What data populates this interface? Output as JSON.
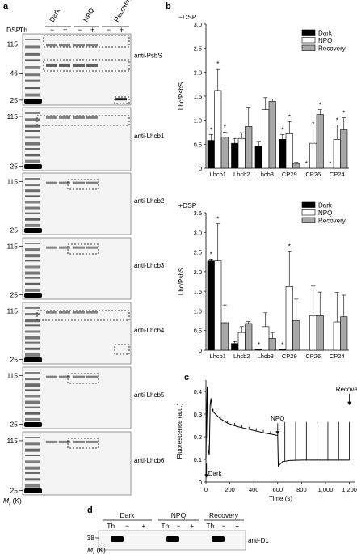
{
  "panel_letters": {
    "a": "a",
    "b": "b",
    "c": "c",
    "d": "d"
  },
  "blots": {
    "col_header": {
      "dsp": "DSP",
      "th": "Th",
      "minus": "−",
      "plus": "+"
    },
    "conditions": [
      "Dark",
      "NPQ",
      "Recovery"
    ],
    "mr_label": "M",
    "mr_sub": "r",
    "mr_unit": " (K)",
    "panels": [
      {
        "antibody": "anti-PsbS",
        "markers": [
          "115",
          "46",
          "25"
        ]
      },
      {
        "antibody": "anti-Lhcb1",
        "markers": [
          "115",
          "25"
        ]
      },
      {
        "antibody": "anti-Lhcb2",
        "markers": [
          "115",
          "25"
        ]
      },
      {
        "antibody": "anti-Lhcb3",
        "markers": [
          "115",
          "25"
        ]
      },
      {
        "antibody": "anti-Lhcb4",
        "markers": [
          "115",
          "25"
        ]
      },
      {
        "antibody": "anti-Lhcb5",
        "markers": [
          "115",
          "25"
        ]
      },
      {
        "antibody": "anti-Lhcb6",
        "markers": [
          "115",
          "25"
        ]
      }
    ]
  },
  "panel_d": {
    "conditions": [
      "Dark",
      "NPQ",
      "Recovery"
    ],
    "lanes": [
      "Th",
      "−",
      "+"
    ],
    "marker": "38",
    "antibody": "anti-D1"
  },
  "chart_data": [
    {
      "type": "bar",
      "title": "−DSP",
      "ylabel": "Lhc/PsbS",
      "ylim": [
        0,
        3.0
      ],
      "yticks": [
        "0",
        "0.5",
        "1.0",
        "1.5",
        "2.0",
        "2.5",
        "3.0"
      ],
      "categories": [
        "Lhcb1",
        "Lhcb2",
        "Lhcb3",
        "CP29",
        "CP26",
        "CP24"
      ],
      "series": [
        {
          "name": "Dark",
          "color": "#000000",
          "values": [
            0.58,
            0.52,
            0.46,
            0.6,
            0.0,
            0.0
          ],
          "errors": [
            0.12,
            0.1,
            0.1,
            0.1,
            0,
            0
          ]
        },
        {
          "name": "NPQ",
          "color": "#ffffff",
          "values": [
            1.62,
            0.62,
            1.22,
            0.72,
            0.52,
            0.6
          ],
          "errors": [
            0.45,
            0.12,
            0.25,
            0.25,
            0.3,
            0.3
          ]
        },
        {
          "name": "Recovery",
          "color": "#a8a8a8",
          "values": [
            0.65,
            0.87,
            1.39,
            0.1,
            1.12,
            0.8
          ],
          "errors": [
            0.1,
            0.4,
            0.05,
            0.03,
            0.1,
            0.25
          ]
        }
      ],
      "annotations": [
        {
          "category": "Lhcb1",
          "text": "*"
        },
        {
          "category": "Lhcb1",
          "text": "*"
        },
        {
          "category": "Lhcb1",
          "text": "*"
        },
        {
          "category": "CP29",
          "text": "*"
        },
        {
          "category": "CP29",
          "text": "*"
        },
        {
          "category": "CP26",
          "text": "*"
        },
        {
          "category": "CP26",
          "text": "*"
        },
        {
          "category": "CP26",
          "text": "*"
        },
        {
          "category": "CP24",
          "text": "*"
        },
        {
          "category": "CP24",
          "text": "*"
        },
        {
          "category": "CP24",
          "text": "*"
        }
      ],
      "legend": "top-right"
    },
    {
      "type": "bar",
      "title": "+DSP",
      "ylabel": "Lhc/PsbS",
      "ylim": [
        0,
        3.5
      ],
      "yticks": [
        "0",
        "0.5",
        "1.0",
        "1.5",
        "2.0",
        "2.5",
        "3.0",
        "3.5"
      ],
      "categories": [
        "Lhcb1",
        "Lhcb2",
        "Lhcb3",
        "CP29",
        "CP26",
        "CP24"
      ],
      "series": [
        {
          "name": "Dark",
          "color": "#000000",
          "values": [
            2.27,
            0.17,
            0.02,
            0.02,
            0.0,
            0.0
          ],
          "errors": [
            0.05,
            0.05,
            0,
            0,
            0,
            0
          ]
        },
        {
          "name": "NPQ",
          "color": "#ffffff",
          "values": [
            2.27,
            0.45,
            0.6,
            1.62,
            0.88,
            0.72
          ],
          "errors": [
            0.95,
            0.15,
            0.35,
            0.9,
            0.75,
            0.75
          ]
        },
        {
          "name": "Recovery",
          "color": "#a8a8a8",
          "values": [
            0.7,
            0.68,
            0.3,
            0.75,
            0.88,
            0.85
          ],
          "errors": [
            0.45,
            0.05,
            0.15,
            0.55,
            0.6,
            0.55
          ]
        }
      ],
      "annotations": [
        {
          "category": "Lhcb1",
          "text": "*"
        },
        {
          "category": "Lhcb1",
          "text": "*"
        },
        {
          "category": "Lhcb3",
          "text": "*"
        },
        {
          "category": "CP29",
          "text": "*"
        },
        {
          "category": "CP29",
          "text": "*"
        }
      ],
      "legend": "top-right"
    },
    {
      "type": "line",
      "ylabel": "Fluorescence (a.u.)",
      "xlabel": "Time (s)",
      "xlim": [
        0,
        1250
      ],
      "ylim": [
        0,
        0.45
      ],
      "xticks": [
        "0",
        "200",
        "400",
        "600",
        "800",
        "1,000",
        "1,200"
      ],
      "yticks": [
        "0",
        "0.1",
        "0.2",
        "0.3",
        "0.4"
      ],
      "x": [
        0,
        5,
        10,
        15,
        20,
        28,
        35,
        42,
        50,
        60,
        80,
        120,
        180,
        260,
        340,
        420,
        500,
        560,
        600,
        605,
        640,
        700,
        800,
        900,
        1000,
        1100,
        1200
      ],
      "y": [
        0.1,
        0.3,
        0.42,
        0.2,
        0.14,
        0.12,
        0.34,
        0.37,
        0.33,
        0.31,
        0.3,
        0.28,
        0.26,
        0.245,
        0.235,
        0.225,
        0.215,
        0.21,
        0.205,
        0.07,
        0.09,
        0.095,
        0.097,
        0.097,
        0.097,
        0.097,
        0.097
      ],
      "annotations": [
        {
          "text": "Dark",
          "x": 5
        },
        {
          "text": "NPQ",
          "x": 600
        },
        {
          "text": "Recovery",
          "x": 1200
        }
      ]
    }
  ]
}
